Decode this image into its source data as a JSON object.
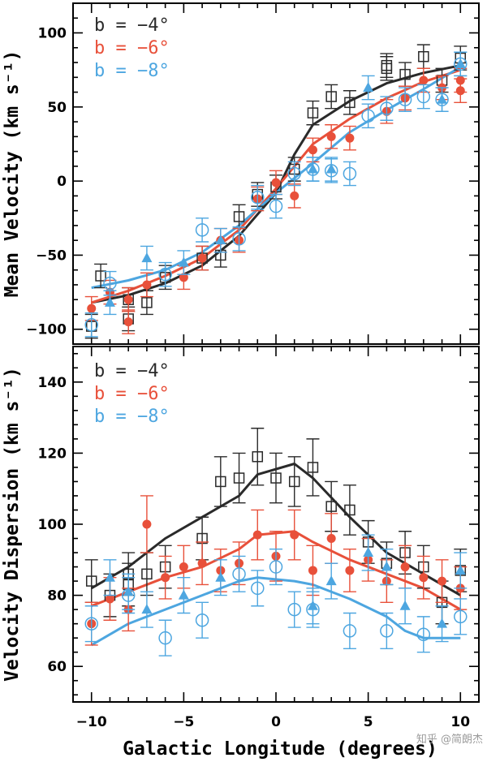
{
  "xlabel": "Galactic Longitude (degrees)",
  "watermark": "知乎 @简朗杰",
  "colors": {
    "b4": "#2a2a2a",
    "b6": "#e8503a",
    "b8": "#4da6e0"
  },
  "chart_data": [
    {
      "type": "scatter",
      "panel": "top",
      "ylabel": "Mean Velocity (km s⁻¹)",
      "xlim": [
        -11,
        11
      ],
      "ylim": [
        -110,
        120
      ],
      "xticks": [
        -10,
        -5,
        0,
        5,
        10
      ],
      "yticks": [
        -100,
        -50,
        0,
        50,
        100
      ],
      "legend_position": "top-left",
      "series": [
        {
          "name": "b = −4°",
          "marker": "open-square",
          "color": "#2a2a2a",
          "points": [
            [
              -10,
              -98,
              8
            ],
            [
              -9.5,
              -64,
              8
            ],
            [
              -8,
              -80,
              8
            ],
            [
              -8,
              -93,
              8
            ],
            [
              -7,
              -82,
              8
            ],
            [
              -6,
              -65,
              8
            ],
            [
              -4,
              -52,
              8
            ],
            [
              -3,
              -50,
              8
            ],
            [
              -2,
              -24,
              8
            ],
            [
              -1,
              -9,
              8
            ],
            [
              0,
              -4,
              8
            ],
            [
              1,
              8,
              8
            ],
            [
              2,
              46,
              8
            ],
            [
              3,
              57,
              8
            ],
            [
              4,
              53,
              8
            ],
            [
              6,
              78,
              8
            ],
            [
              6,
              76,
              8
            ],
            [
              7,
              72,
              8
            ],
            [
              8,
              84,
              8
            ],
            [
              9,
              68,
              8
            ],
            [
              10,
              83,
              8
            ]
          ],
          "model": [
            [
              -10,
              -82
            ],
            [
              -8,
              -77
            ],
            [
              -6,
              -69
            ],
            [
              -4,
              -57
            ],
            [
              -2,
              -37
            ],
            [
              0,
              -8
            ],
            [
              1,
              18
            ],
            [
              2,
              38
            ],
            [
              4,
              54
            ],
            [
              6,
              66
            ],
            [
              8,
              73
            ],
            [
              10,
              78
            ]
          ]
        },
        {
          "name": "b = −6°",
          "marker": "filled-circle",
          "color": "#e8503a",
          "points": [
            [
              -10,
              -86,
              8
            ],
            [
              -9,
              -75,
              8
            ],
            [
              -8,
              -95,
              8
            ],
            [
              -8,
              -80,
              8
            ],
            [
              -7,
              -70,
              8
            ],
            [
              -5,
              -65,
              8
            ],
            [
              -4,
              -52,
              8
            ],
            [
              -3,
              -40,
              8
            ],
            [
              -2,
              -40,
              8
            ],
            [
              -1,
              -12,
              8
            ],
            [
              0,
              -1,
              8
            ],
            [
              1,
              -10,
              8
            ],
            [
              2,
              21,
              8
            ],
            [
              3,
              30,
              8
            ],
            [
              4,
              29,
              8
            ],
            [
              6,
              47,
              8
            ],
            [
              7,
              56,
              8
            ],
            [
              8,
              68,
              8
            ],
            [
              9,
              63,
              8
            ],
            [
              10,
              68,
              8
            ],
            [
              10,
              61,
              8
            ]
          ],
          "model": [
            [
              -10,
              -82
            ],
            [
              -8,
              -74
            ],
            [
              -6,
              -64
            ],
            [
              -4,
              -52
            ],
            [
              -2,
              -33
            ],
            [
              0,
              -5
            ],
            [
              2,
              25
            ],
            [
              4,
              42
            ],
            [
              6,
              56
            ],
            [
              8,
              67
            ],
            [
              10,
              75
            ]
          ]
        },
        {
          "name": "b = −8°",
          "marker": "open-circle",
          "color": "#4da6e0",
          "points": [
            [
              -10,
              -97,
              8
            ],
            [
              -9,
              -69,
              8
            ],
            [
              -6,
              -63,
              8
            ],
            [
              -4,
              -33,
              8
            ],
            [
              -2,
              -39,
              8
            ],
            [
              -1,
              -11,
              8
            ],
            [
              0,
              -17,
              8
            ],
            [
              1,
              5,
              8
            ],
            [
              2,
              8,
              8
            ],
            [
              3,
              7,
              8
            ],
            [
              4,
              5,
              8
            ],
            [
              5,
              44,
              8
            ],
            [
              6,
              49,
              8
            ],
            [
              7,
              55,
              8
            ],
            [
              8,
              57,
              8
            ],
            [
              9,
              55,
              8
            ],
            [
              10,
              79,
              8
            ]
          ],
          "triangles": [
            [
              -9,
              -82,
              8
            ],
            [
              -7,
              -52,
              8
            ],
            [
              -5,
              -55,
              8
            ],
            [
              -3,
              -40,
              8
            ],
            [
              2,
              8,
              8
            ],
            [
              3,
              8,
              8
            ],
            [
              5,
              63,
              8
            ],
            [
              9,
              55,
              8
            ],
            [
              10,
              79,
              8
            ]
          ],
          "model": [
            [
              -10,
              -72
            ],
            [
              -8,
              -67
            ],
            [
              -6,
              -60
            ],
            [
              -4,
              -48
            ],
            [
              -2,
              -30
            ],
            [
              0,
              -8
            ],
            [
              2,
              12
            ],
            [
              4,
              33
            ],
            [
              6,
              48
            ],
            [
              8,
              62
            ],
            [
              10,
              77
            ]
          ]
        }
      ]
    },
    {
      "type": "scatter",
      "panel": "bottom",
      "ylabel": "Velocity Dispersion (km s⁻¹)",
      "xlim": [
        -11,
        11
      ],
      "ylim": [
        50,
        150
      ],
      "xticks": [
        -10,
        -5,
        0,
        5,
        10
      ],
      "yticks": [
        60,
        80,
        100,
        120,
        140
      ],
      "legend_position": "top-left",
      "series": [
        {
          "name": "b = −4°",
          "marker": "open-square",
          "color": "#2a2a2a",
          "points": [
            [
              -10,
              84,
              6
            ],
            [
              -9,
              80,
              6
            ],
            [
              -8,
              86,
              6
            ],
            [
              -8,
              83,
              6
            ],
            [
              -7,
              86,
              6
            ],
            [
              -6,
              88,
              6
            ],
            [
              -4,
              96,
              6
            ],
            [
              -3,
              112,
              7
            ],
            [
              -2,
              113,
              7
            ],
            [
              -1,
              119,
              8
            ],
            [
              0,
              113,
              7
            ],
            [
              1,
              112,
              7
            ],
            [
              2,
              116,
              8
            ],
            [
              3,
              105,
              7
            ],
            [
              4,
              104,
              7
            ],
            [
              5,
              95,
              6
            ],
            [
              6,
              89,
              6
            ],
            [
              7,
              92,
              6
            ],
            [
              8,
              88,
              6
            ],
            [
              9,
              78,
              6
            ],
            [
              10,
              87,
              6
            ]
          ],
          "model": [
            [
              -10,
              82
            ],
            [
              -8,
              88
            ],
            [
              -6,
              96
            ],
            [
              -4,
              102
            ],
            [
              -2,
              108
            ],
            [
              -1,
              114
            ],
            [
              1,
              117
            ],
            [
              2,
              113
            ],
            [
              4,
              102
            ],
            [
              6,
              92
            ],
            [
              8,
              86
            ],
            [
              10,
              80
            ]
          ]
        },
        {
          "name": "b = −6°",
          "marker": "filled-circle",
          "color": "#e8503a",
          "points": [
            [
              -10,
              72,
              6
            ],
            [
              -9,
              79,
              6
            ],
            [
              -8,
              76,
              6
            ],
            [
              -7,
              100,
              8
            ],
            [
              -6,
              85,
              6
            ],
            [
              -5,
              88,
              6
            ],
            [
              -4,
              89,
              6
            ],
            [
              -3,
              87,
              6
            ],
            [
              -2,
              89,
              6
            ],
            [
              -1,
              97,
              7
            ],
            [
              0,
              91,
              7
            ],
            [
              1,
              97,
              7
            ],
            [
              2,
              87,
              7
            ],
            [
              3,
              96,
              7
            ],
            [
              4,
              87,
              6
            ],
            [
              5,
              90,
              6
            ],
            [
              6,
              84,
              6
            ],
            [
              7,
              88,
              6
            ],
            [
              8,
              85,
              6
            ],
            [
              9,
              84,
              6
            ],
            [
              10,
              82,
              6
            ]
          ],
          "model": [
            [
              -10,
              77
            ],
            [
              -8,
              81
            ],
            [
              -6,
              85
            ],
            [
              -4,
              88
            ],
            [
              -2,
              93
            ],
            [
              -1,
              97
            ],
            [
              1,
              98
            ],
            [
              2,
              95
            ],
            [
              4,
              90
            ],
            [
              6,
              86
            ],
            [
              8,
              82
            ],
            [
              10,
              76
            ]
          ]
        },
        {
          "name": "b = −8°",
          "marker": "open-circle",
          "color": "#4da6e0",
          "points": [
            [
              -10,
              72,
              5
            ],
            [
              -8,
              80,
              5
            ],
            [
              -6,
              68,
              5
            ],
            [
              -4,
              73,
              5
            ],
            [
              -2,
              86,
              5
            ],
            [
              -1,
              82,
              5
            ],
            [
              0,
              88,
              5
            ],
            [
              1,
              76,
              5
            ],
            [
              2,
              76,
              5
            ],
            [
              4,
              70,
              5
            ],
            [
              6,
              70,
              5
            ],
            [
              8,
              69,
              5
            ],
            [
              10,
              74,
              5
            ]
          ],
          "triangles": [
            [
              -9,
              85,
              5
            ],
            [
              -8,
              81,
              5
            ],
            [
              -7,
              76,
              5
            ],
            [
              -5,
              80,
              5
            ],
            [
              -3,
              85,
              5
            ],
            [
              2,
              77,
              5
            ],
            [
              3,
              84,
              5
            ],
            [
              5,
              92,
              5
            ],
            [
              6,
              88,
              5
            ],
            [
              7,
              77,
              5
            ],
            [
              9,
              72,
              5
            ],
            [
              10,
              87,
              5
            ]
          ],
          "model": [
            [
              -10,
              66
            ],
            [
              -8,
              72
            ],
            [
              -6,
              76
            ],
            [
              -4,
              80
            ],
            [
              -2,
              84
            ],
            [
              -1,
              85
            ],
            [
              1,
              84
            ],
            [
              2,
              83
            ],
            [
              4,
              79
            ],
            [
              6,
              74
            ],
            [
              7,
              70
            ],
            [
              8,
              68
            ],
            [
              10,
              68
            ]
          ]
        }
      ]
    }
  ]
}
